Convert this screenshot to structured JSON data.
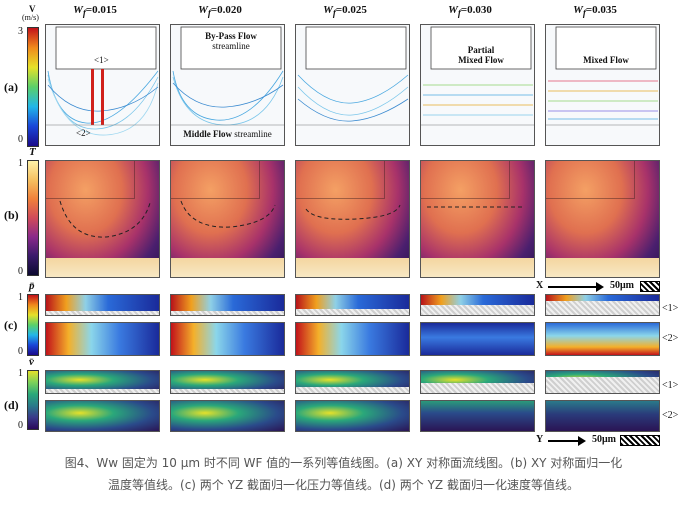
{
  "columns": [
    {
      "var": "W",
      "sub": "f",
      "value": "=0.015"
    },
    {
      "var": "W",
      "sub": "f",
      "value": "=0.020"
    },
    {
      "var": "W",
      "sub": "f",
      "value": "=0.025"
    },
    {
      "var": "W",
      "sub": "f",
      "value": "=0.030"
    },
    {
      "var": "W",
      "sub": "f",
      "value": "=0.035"
    }
  ],
  "row_labels": {
    "a": "(a)",
    "b": "(b)",
    "c": "(c)",
    "d": "(d)"
  },
  "colorbars": {
    "v": {
      "title": "V",
      "unit": "(m/s)",
      "max": "3",
      "min": "0"
    },
    "T": {
      "title": "T",
      "max": "1",
      "min": "0"
    },
    "p": {
      "title": "p̄",
      "max": "1",
      "min": "0"
    },
    "vv": {
      "title": "v̄",
      "max": "1",
      "min": "0"
    }
  },
  "annotations": {
    "sec1": "<1>",
    "sec2": "<2>",
    "bypass": "By-Pass Flow",
    "bypass_sub": "streamline",
    "middle": "Middle Flow",
    "middle_sub": "streamline",
    "partial": "Partial",
    "partial2": "Mixed Flow",
    "mixed": "Mixed Flow"
  },
  "scale_x": {
    "axis": "X",
    "label": "50μm"
  },
  "scale_y": {
    "axis": "Y",
    "label": "50μm"
  },
  "caption_line1": "图4、Ww 固定为 10 μm 时不同 WF 值的一系列等值线图。(a) XY 对称面流线图。(b) XY 对称面归一化",
  "caption_line2": "温度等值线。(c) 两个 YZ 截面归一化压力等值线。(d) 两个 YZ 截面归一化速度等值线。"
}
